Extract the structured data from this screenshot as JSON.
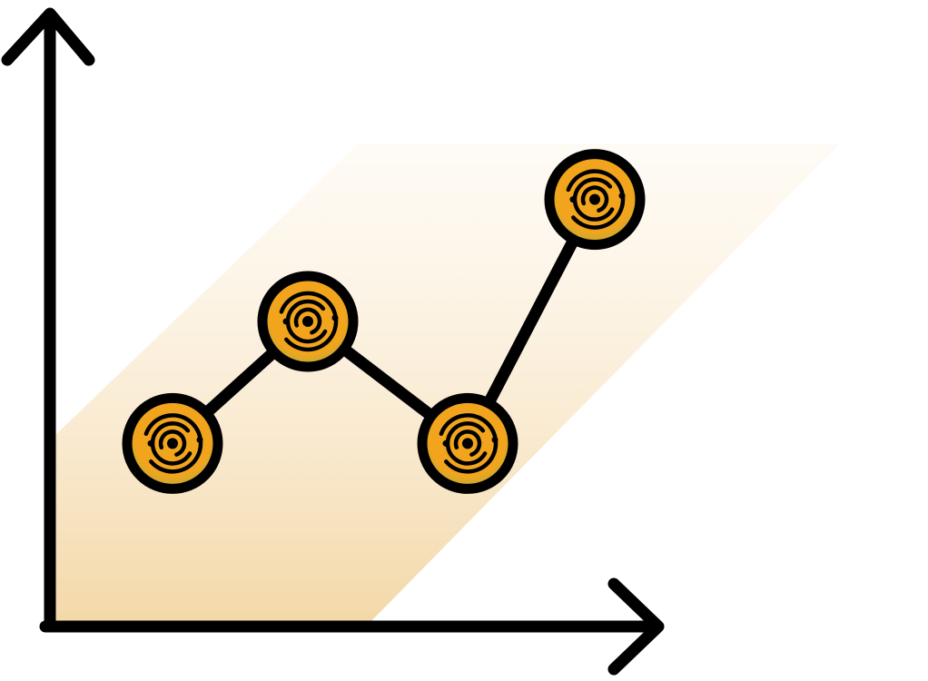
{
  "chart_data": {
    "type": "line",
    "title": "",
    "xlabel": "",
    "ylabel": "",
    "x": [
      1,
      2,
      3,
      4
    ],
    "values": [
      3,
      5,
      3,
      7
    ],
    "xlim": [
      0,
      6
    ],
    "ylim": [
      0,
      10
    ],
    "grid": false,
    "legend": "none",
    "trend_band": true
  },
  "colors": {
    "axis": "#000000",
    "line": "#000000",
    "marker_fill": "#f2a51c",
    "marker_halo": "#b6ab3f",
    "band_top": "#fdf3e3",
    "band_bottom": "#f3d8a8"
  },
  "icons": {
    "marker": "target-coin-icon"
  }
}
